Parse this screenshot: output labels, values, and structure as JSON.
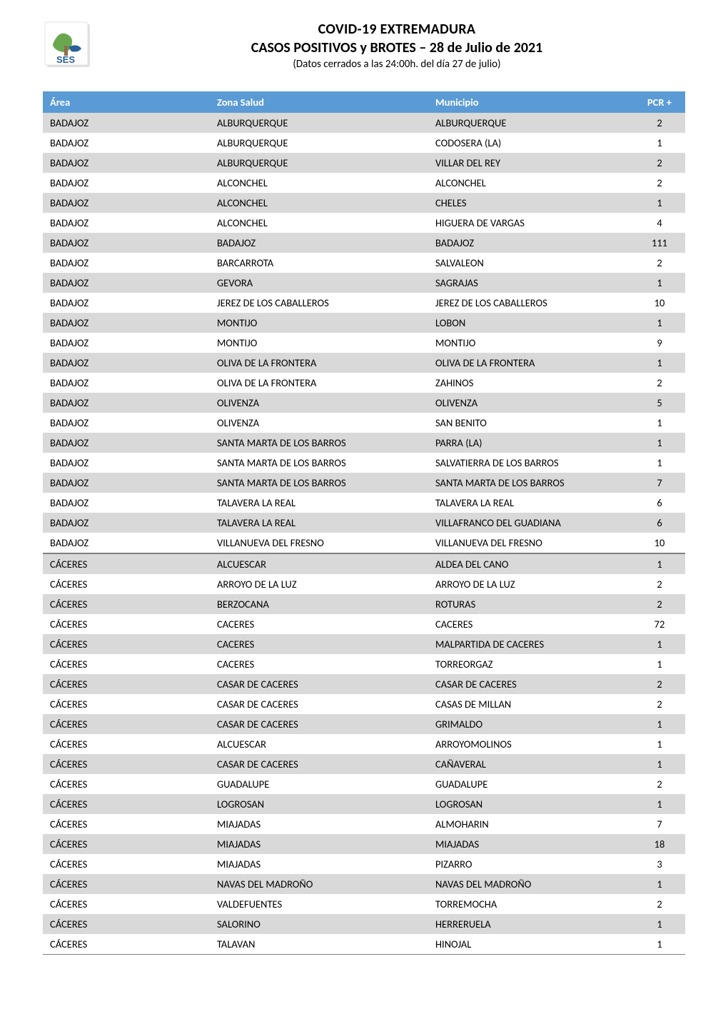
{
  "header": {
    "title1": "COVID-19 EXTREMADURA",
    "title2": "CASOS POSITIVOS y BROTES – 28 de Julio de 2021",
    "title3": "(Datos cerrados a las 24:00h. del día 27 de julio)"
  },
  "logo": {
    "bg": "#ffffff",
    "green": "#6aa84f",
    "brown": "#8d6e4a",
    "blue": "#2a6099",
    "text": "SES",
    "text_color": "#2a6099",
    "shadow": "#b7b7b7"
  },
  "table": {
    "header_bg": "#5b9bd5",
    "header_fg": "#ffffff",
    "row_gray": "#d9d9d9",
    "row_white": "#ffffff",
    "separator_color": "#7f7f7f",
    "font_size_pt": 11,
    "columns": [
      "Área",
      "Zona Salud",
      "Municipio",
      "PCR +"
    ],
    "col_widths_pct": [
      26,
      34,
      32,
      8
    ],
    "rows": [
      {
        "area": "BADAJOZ",
        "zona": "ALBURQUERQUE",
        "muni": "ALBURQUERQUE",
        "pcr": 2,
        "shade": "gray",
        "sep": false
      },
      {
        "area": "BADAJOZ",
        "zona": "ALBURQUERQUE",
        "muni": "CODOSERA (LA)",
        "pcr": 1,
        "shade": "white",
        "sep": false
      },
      {
        "area": "BADAJOZ",
        "zona": "ALBURQUERQUE",
        "muni": "VILLAR DEL REY",
        "pcr": 2,
        "shade": "gray",
        "sep": false
      },
      {
        "area": "BADAJOZ",
        "zona": "ALCONCHEL",
        "muni": "ALCONCHEL",
        "pcr": 2,
        "shade": "white",
        "sep": false
      },
      {
        "area": "BADAJOZ",
        "zona": "ALCONCHEL",
        "muni": "CHELES",
        "pcr": 1,
        "shade": "gray",
        "sep": false
      },
      {
        "area": "BADAJOZ",
        "zona": "ALCONCHEL",
        "muni": "HIGUERA DE VARGAS",
        "pcr": 4,
        "shade": "white",
        "sep": false
      },
      {
        "area": "BADAJOZ",
        "zona": "BADAJOZ",
        "muni": "BADAJOZ",
        "pcr": 111,
        "shade": "gray",
        "sep": false
      },
      {
        "area": "BADAJOZ",
        "zona": "BARCARROTA",
        "muni": "SALVALEON",
        "pcr": 2,
        "shade": "white",
        "sep": false
      },
      {
        "area": "BADAJOZ",
        "zona": "GEVORA",
        "muni": "SAGRAJAS",
        "pcr": 1,
        "shade": "gray",
        "sep": false
      },
      {
        "area": "BADAJOZ",
        "zona": "JEREZ DE LOS CABALLEROS",
        "muni": "JEREZ DE LOS CABALLEROS",
        "pcr": 10,
        "shade": "white",
        "sep": false
      },
      {
        "area": "BADAJOZ",
        "zona": "MONTIJO",
        "muni": "LOBON",
        "pcr": 1,
        "shade": "gray",
        "sep": false
      },
      {
        "area": "BADAJOZ",
        "zona": "MONTIJO",
        "muni": "MONTIJO",
        "pcr": 9,
        "shade": "white",
        "sep": false
      },
      {
        "area": "BADAJOZ",
        "zona": "OLIVA DE LA FRONTERA",
        "muni": "OLIVA DE LA FRONTERA",
        "pcr": 1,
        "shade": "gray",
        "sep": false
      },
      {
        "area": "BADAJOZ",
        "zona": "OLIVA DE LA FRONTERA",
        "muni": "ZAHINOS",
        "pcr": 2,
        "shade": "white",
        "sep": false
      },
      {
        "area": "BADAJOZ",
        "zona": "OLIVENZA",
        "muni": "OLIVENZA",
        "pcr": 5,
        "shade": "gray",
        "sep": false
      },
      {
        "area": "BADAJOZ",
        "zona": "OLIVENZA",
        "muni": "SAN BENITO",
        "pcr": 1,
        "shade": "white",
        "sep": false
      },
      {
        "area": "BADAJOZ",
        "zona": "SANTA MARTA DE LOS BARROS",
        "muni": "PARRA (LA)",
        "pcr": 1,
        "shade": "gray",
        "sep": false
      },
      {
        "area": "BADAJOZ",
        "zona": "SANTA MARTA DE LOS BARROS",
        "muni": "SALVATIERRA DE LOS BARROS",
        "pcr": 1,
        "shade": "white",
        "sep": false
      },
      {
        "area": "BADAJOZ",
        "zona": "SANTA MARTA DE LOS BARROS",
        "muni": "SANTA MARTA DE LOS BARROS",
        "pcr": 7,
        "shade": "gray",
        "sep": false
      },
      {
        "area": "BADAJOZ",
        "zona": "TALAVERA LA REAL",
        "muni": "TALAVERA LA REAL",
        "pcr": 6,
        "shade": "white",
        "sep": false
      },
      {
        "area": "BADAJOZ",
        "zona": "TALAVERA LA REAL",
        "muni": "VILLAFRANCO DEL GUADIANA",
        "pcr": 6,
        "shade": "gray",
        "sep": false
      },
      {
        "area": "BADAJOZ",
        "zona": "VILLANUEVA DEL FRESNO",
        "muni": "VILLANUEVA DEL FRESNO",
        "pcr": 10,
        "shade": "white",
        "sep": false
      },
      {
        "area": "CÁCERES",
        "zona": "ALCUESCAR",
        "muni": "ALDEA DEL CANO",
        "pcr": 1,
        "shade": "gray",
        "sep": true
      },
      {
        "area": "CÁCERES",
        "zona": "ARROYO DE LA LUZ",
        "muni": "ARROYO DE LA LUZ",
        "pcr": 2,
        "shade": "white",
        "sep": false
      },
      {
        "area": "CÁCERES",
        "zona": "BERZOCANA",
        "muni": "ROTURAS",
        "pcr": 2,
        "shade": "gray",
        "sep": false
      },
      {
        "area": "CÁCERES",
        "zona": "CACERES",
        "muni": "CACERES",
        "pcr": 72,
        "shade": "white",
        "sep": false
      },
      {
        "area": "CÁCERES",
        "zona": "CACERES",
        "muni": "MALPARTIDA DE CACERES",
        "pcr": 1,
        "shade": "gray",
        "sep": false
      },
      {
        "area": "CÁCERES",
        "zona": "CACERES",
        "muni": "TORREORGAZ",
        "pcr": 1,
        "shade": "white",
        "sep": false
      },
      {
        "area": "CÁCERES",
        "zona": "CASAR DE CACERES",
        "muni": "CASAR DE CACERES",
        "pcr": 2,
        "shade": "gray",
        "sep": false
      },
      {
        "area": "CÁCERES",
        "zona": "CASAR DE CACERES",
        "muni": "CASAS DE MILLAN",
        "pcr": 2,
        "shade": "white",
        "sep": false
      },
      {
        "area": "CÁCERES",
        "zona": "CASAR DE CACERES",
        "muni": "GRIMALDO",
        "pcr": 1,
        "shade": "gray",
        "sep": false
      },
      {
        "area": "CÁCERES",
        "zona": "ALCUESCAR",
        "muni": "ARROYOMOLINOS",
        "pcr": 1,
        "shade": "white",
        "sep": false
      },
      {
        "area": "CÁCERES",
        "zona": "CASAR DE CACERES",
        "muni": "CAÑAVERAL",
        "pcr": 1,
        "shade": "gray",
        "sep": false
      },
      {
        "area": "CÁCERES",
        "zona": "GUADALUPE",
        "muni": "GUADALUPE",
        "pcr": 2,
        "shade": "white",
        "sep": false
      },
      {
        "area": "CÁCERES",
        "zona": "LOGROSAN",
        "muni": "LOGROSAN",
        "pcr": 1,
        "shade": "gray",
        "sep": false
      },
      {
        "area": "CÁCERES",
        "zona": "MIAJADAS",
        "muni": "ALMOHARIN",
        "pcr": 7,
        "shade": "white",
        "sep": false
      },
      {
        "area": "CÁCERES",
        "zona": "MIAJADAS",
        "muni": "MIAJADAS",
        "pcr": 18,
        "shade": "gray",
        "sep": false
      },
      {
        "area": "CÁCERES",
        "zona": "MIAJADAS",
        "muni": "PIZARRO",
        "pcr": 3,
        "shade": "white",
        "sep": false
      },
      {
        "area": "CÁCERES",
        "zona": "NAVAS DEL MADROÑO",
        "muni": "NAVAS DEL MADROÑO",
        "pcr": 1,
        "shade": "gray",
        "sep": false
      },
      {
        "area": "CÁCERES",
        "zona": "VALDEFUENTES",
        "muni": "TORREMOCHA",
        "pcr": 2,
        "shade": "white",
        "sep": false
      },
      {
        "area": "CÁCERES",
        "zona": "SALORINO",
        "muni": "HERRERUELA",
        "pcr": 1,
        "shade": "gray",
        "sep": false
      },
      {
        "area": "CÁCERES",
        "zona": "TALAVAN",
        "muni": "HINOJAL",
        "pcr": 1,
        "shade": "white",
        "sep": false
      }
    ]
  }
}
